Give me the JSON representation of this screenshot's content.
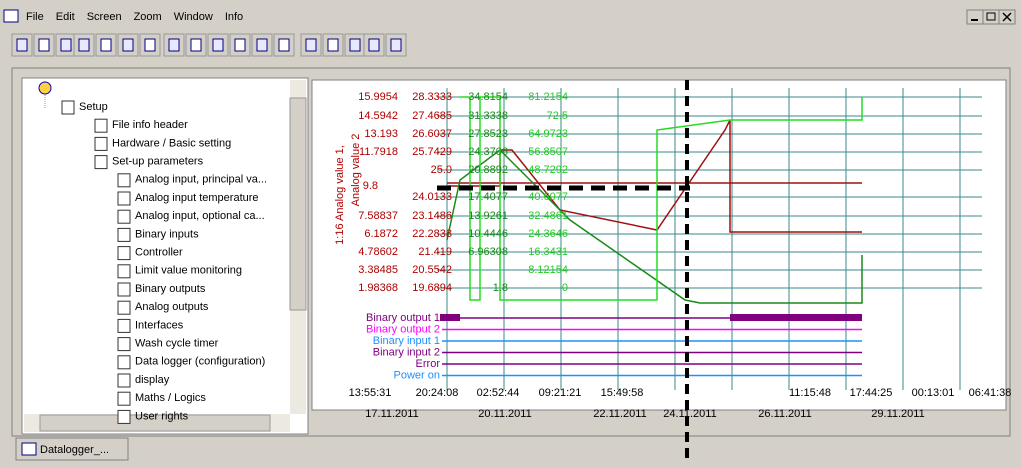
{
  "menu": [
    "File",
    "Edit",
    "Screen",
    "Zoom",
    "Window",
    "Info"
  ],
  "tree": {
    "label": "Setup",
    "items": [
      "File info header",
      "Hardware / Basic setting"
    ],
    "setup_parameters": {
      "label": "Set-up parameters",
      "items": [
        "Analog input, principal va...",
        "Analog input temperature",
        "Analog input, optional ca...",
        "Binary inputs",
        "Controller",
        "Limit value monitoring",
        "Binary outputs",
        "Analog outputs",
        "Interfaces",
        "Wash cycle timer",
        "Data logger (configuration)",
        "display",
        "Maths / Logics",
        "User rights"
      ]
    }
  },
  "chart": {
    "axis_title": "1:16 Analog value 1,",
    "axis_title_2": "Analog value 2",
    "marker_label": 9.8,
    "columns": [
      {
        "color": "#b00000",
        "values": [
          15.9954,
          14.5942,
          13.193,
          11.7918,
          7.58837,
          6.1872,
          4.78602,
          3.38485,
          1.98368
        ]
      },
      {
        "color": "#b00000",
        "values": [
          28.3333,
          27.4685,
          26.6037,
          25.7429,
          "25.0",
          24.0133,
          23.1486,
          22.2838,
          21.419,
          20.5542,
          19.6894
        ]
      },
      {
        "color": "#1a8a1a",
        "values": [
          34.8154,
          31.3338,
          27.8523,
          24.3706,
          20.8892,
          17.4077,
          13.9261,
          10.4446,
          6.96308,
          1.8
        ]
      },
      {
        "color": "#22cc22",
        "values": [
          81.2154,
          72.5,
          64.9723,
          56.8507,
          48.7292,
          40.6077,
          32.4861,
          24.3646,
          16.3431,
          8.12154,
          0
        ]
      }
    ],
    "channels": [
      {
        "name": "Binary output 1",
        "color": "#800080"
      },
      {
        "name": "Binary output 2",
        "color": "#ff00ff"
      },
      {
        "name": "Binary input 1",
        "color": "#1e90ff"
      },
      {
        "name": "Binary input 2",
        "color": "#800080"
      },
      {
        "name": "Error",
        "color": "#800080"
      },
      {
        "name": "Power on",
        "color": "#1e90ff"
      }
    ],
    "times": [
      "13:55:31",
      "20:24:08",
      "02:52:44",
      "09:21:21",
      "15:49:58",
      "11:15:48",
      "17:44:25",
      "00:13:01",
      "06:41:38"
    ],
    "dates": [
      "17.11.2011",
      "20.11.2011",
      "22.11.2011",
      "24.11.2011",
      "26.11.2011",
      "29.11.2011"
    ]
  },
  "tab": "Datalogger_..."
}
